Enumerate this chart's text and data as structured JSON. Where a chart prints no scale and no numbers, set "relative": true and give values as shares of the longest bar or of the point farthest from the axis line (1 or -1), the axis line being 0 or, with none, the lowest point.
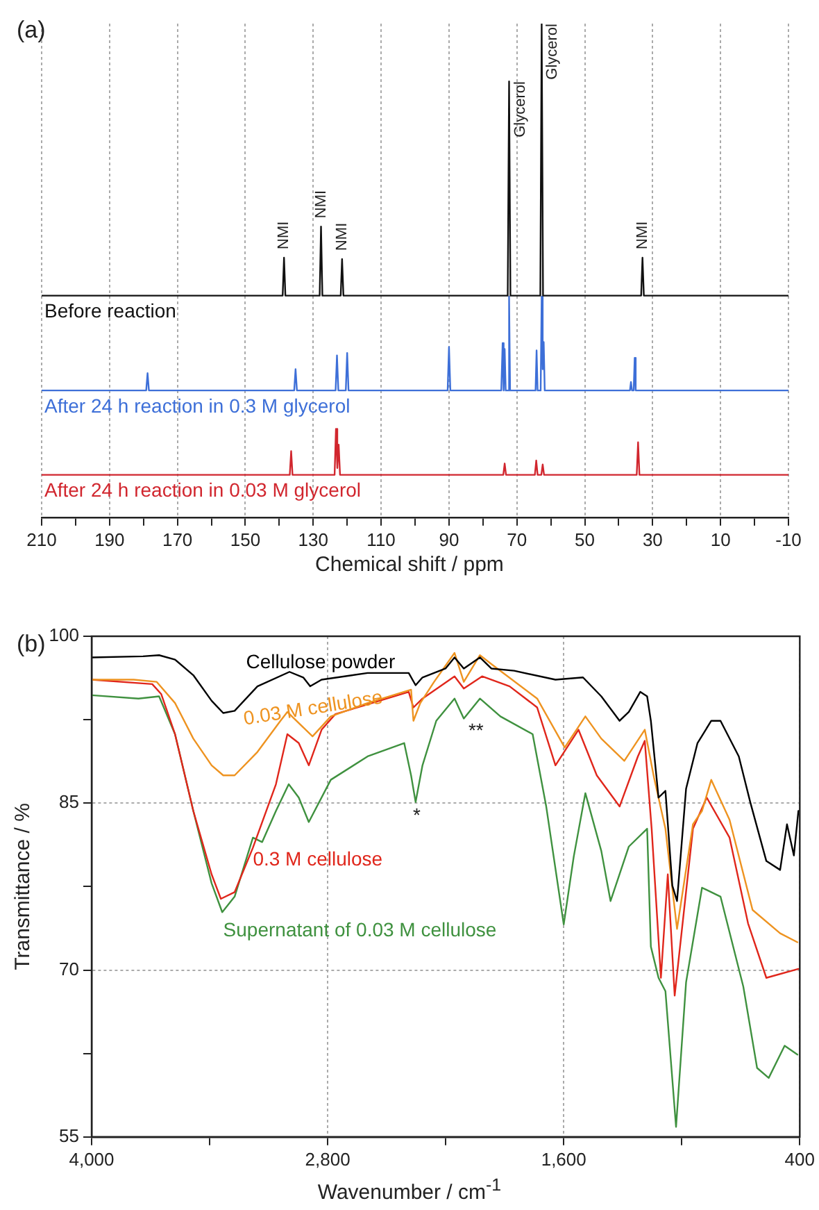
{
  "chart_data": [
    {
      "type": "line",
      "title": "(a)",
      "xlabel": "Chemical shift / ppm",
      "relative": true,
      "tick_labels": "x",
      "grid": "x",
      "marker": "none",
      "xlim": [
        210,
        -10
      ],
      "xticks": [
        210,
        {
          "value": 200,
          "label": null
        },
        190,
        {
          "value": 180,
          "label": null
        },
        170,
        {
          "value": 160,
          "label": null
        },
        150,
        {
          "value": 140,
          "label": null
        },
        130,
        {
          "value": 120,
          "label": null
        },
        110,
        {
          "value": 100,
          "label": null
        },
        90,
        {
          "value": 80,
          "label": null
        },
        70,
        {
          "value": 60,
          "label": null
        },
        50,
        {
          "value": 40,
          "label": null
        },
        30,
        {
          "value": 20,
          "label": null
        },
        10,
        {
          "value": 0,
          "label": null
        },
        -10
      ],
      "series": [
        {
          "name": "Before reaction",
          "color": "#111111",
          "x": [
            210,
            139.0,
            138.6,
            138.2,
            128.1,
            127.7,
            127.3,
            121.9,
            121.5,
            121.1,
            72.7,
            72.3,
            71.9,
            63.1,
            62.7,
            62.3,
            33.4,
            33.0,
            32.6,
            -10
          ],
          "values": [
            0.449,
            0.449,
            0.526,
            0.449,
            0.449,
            0.589,
            0.449,
            0.449,
            0.523,
            0.449,
            0.449,
            0.883,
            0.449,
            0.449,
            1,
            0.449,
            0.449,
            0.526,
            0.449,
            0.449
          ]
        },
        {
          "name": "After 24 h reaction in 0.3 M glycerol",
          "color": "#3d6fd8",
          "x": [
            210,
            179.2,
            178.8,
            178.4,
            135.6,
            135.2,
            134.8,
            123.4,
            123.0,
            122.6,
            120.4,
            120.0,
            119.6,
            90.4,
            90.0,
            89.6,
            74.6,
            74.2,
            73.9,
            73.6,
            73.3,
            72.6,
            72.3,
            72.0,
            64.5,
            64.2,
            63.9,
            63.0,
            62.7,
            62.4,
            62.1,
            61.8,
            36.7,
            36.4,
            36.1,
            35.6,
            35.3,
            35.0,
            -10
          ],
          "values": [
            0.257,
            0.257,
            0.292,
            0.257,
            0.257,
            0.3,
            0.257,
            0.257,
            0.328,
            0.257,
            0.257,
            0.333,
            0.257,
            0.257,
            0.345,
            0.257,
            0.257,
            0.353,
            0.257,
            0.341,
            0.257,
            0.257,
            0.447,
            0.257,
            0.257,
            0.338,
            0.257,
            0.257,
            0.447,
            0.3,
            0.355,
            0.257,
            0.257,
            0.274,
            0.257,
            0.257,
            0.323,
            0.257,
            0.257
          ]
        },
        {
          "name": "After 24 h reaction in 0.03 M glycerol",
          "color": "#d1262e",
          "x": [
            210,
            136.9,
            136.5,
            136.1,
            123.7,
            123.3,
            122.9,
            122.5,
            122.1,
            74.0,
            73.6,
            73.2,
            64.7,
            64.3,
            63.9,
            62.8,
            62.4,
            62.0,
            34.7,
            34.3,
            33.9,
            -10
          ],
          "values": [
            0.086,
            0.086,
            0.134,
            0.086,
            0.086,
            0.179,
            0.1,
            0.147,
            0.086,
            0.086,
            0.109,
            0.086,
            0.086,
            0.115,
            0.086,
            0.086,
            0.107,
            0.086,
            0.086,
            0.152,
            0.086,
            0.086
          ]
        }
      ],
      "annotations": [
        {
          "text": "NMI",
          "x": 138.6,
          "y": 0.526
        },
        {
          "text": "NMI",
          "x": 127.7,
          "y": 0.589
        },
        {
          "text": "NMI",
          "x": 121.5,
          "y": 0.523
        },
        {
          "text": "Glycerol",
          "x": 72.3,
          "y": 0.883
        },
        {
          "text": "Glycerol",
          "x": 62.7,
          "y": 1
        },
        {
          "text": "NMI",
          "x": 33.0,
          "y": 0.526
        }
      ]
    },
    {
      "type": "line",
      "title": "(b)",
      "xlabel": "Wavenumber / cm$^{-1}$",
      "ylabel": "Transmittance / %",
      "grid": true,
      "marker": "none",
      "xlim": [
        4000,
        400
      ],
      "xticks": [
        {
          "value": 4000,
          "label": "4,000"
        },
        {
          "value": 3400,
          "label": null
        },
        {
          "value": 2800,
          "label": "2,800"
        },
        {
          "value": 2200,
          "label": null
        },
        {
          "value": 1600,
          "label": "1,600"
        },
        {
          "value": 1000,
          "label": null
        },
        400
      ],
      "ylim": [
        55,
        100
      ],
      "yticks": [
        55,
        {
          "value": 62.5,
          "label": null
        },
        70,
        {
          "value": 77.5,
          "label": null
        },
        85,
        {
          "value": 92.5,
          "label": null
        },
        100
      ],
      "series": [
        {
          "name": "Cellulose powder",
          "color": "#000000",
          "x": [
            4000,
            3739,
            3657,
            3576,
            3483,
            3390,
            3331,
            3273,
            3157,
            2994,
            2924,
            2889,
            2831,
            2597,
            2388,
            2353,
            2318,
            2201,
            2155,
            2108,
            2026,
            1968,
            1852,
            1642,
            1502,
            1409,
            1316,
            1269,
            1211,
            1176,
            1157,
            1118,
            1083,
            1048,
            1024,
            978,
            920,
            850,
            803,
            710,
            652,
            570,
            500,
            465,
            430,
            407
          ],
          "values": [
            98.1,
            98.2,
            98.3,
            97.9,
            96.5,
            94.2,
            93.1,
            93.3,
            95.5,
            96.8,
            96.3,
            95.5,
            96.1,
            96.7,
            96.7,
            95.6,
            96.3,
            97.1,
            98.1,
            97.1,
            98.1,
            97.1,
            96.9,
            96.1,
            96.3,
            94.6,
            92.4,
            93.2,
            95.0,
            94.6,
            92.4,
            85.5,
            86.1,
            77.6,
            76.2,
            86.3,
            90.4,
            92.4,
            92.4,
            89.2,
            85.1,
            79.8,
            79.0,
            83.1,
            80.3,
            84.3
          ]
        },
        {
          "name": "0.03 M cellulose",
          "color": "#ee9320",
          "x": [
            4000,
            3786,
            3669,
            3576,
            3483,
            3390,
            3331,
            3273,
            3157,
            3040,
            3005,
            2970,
            2877,
            2784,
            2597,
            2376,
            2364,
            2329,
            2259,
            2155,
            2108,
            2026,
            1968,
            1735,
            1595,
            1490,
            1409,
            1292,
            1188,
            1141,
            1083,
            1024,
            943,
            897,
            850,
            757,
            640,
            500,
            412
          ],
          "values": [
            96.1,
            96.1,
            95.9,
            94.0,
            90.8,
            88.4,
            87.5,
            87.5,
            89.6,
            92.4,
            93.2,
            92.6,
            91.0,
            92.8,
            94.0,
            95.2,
            92.4,
            94.0,
            95.9,
            98.5,
            95.9,
            98.3,
            97.5,
            94.4,
            90.0,
            92.8,
            90.8,
            88.8,
            91.6,
            87.3,
            82.7,
            73.7,
            83.1,
            84.3,
            87.1,
            83.5,
            75.4,
            73.3,
            72.5
          ]
        },
        {
          "name": "0.3 M cellulose",
          "color": "#e0261b",
          "x": [
            4000,
            3692,
            3646,
            3576,
            3483,
            3390,
            3343,
            3273,
            3180,
            3063,
            3005,
            2947,
            2896,
            2831,
            2761,
            2388,
            2364,
            2318,
            2155,
            2108,
            2015,
            1875,
            1735,
            1642,
            1525,
            1432,
            1316,
            1223,
            1188,
            1153,
            1106,
            1071,
            1036,
            943,
            873,
            757,
            663,
            570,
            407
          ],
          "values": [
            96.1,
            95.7,
            94.8,
            91.2,
            84.3,
            78.6,
            76.4,
            77.0,
            81.0,
            86.7,
            91.2,
            90.4,
            88.4,
            91.6,
            93.0,
            95.0,
            93.6,
            94.4,
            96.4,
            95.3,
            96.4,
            95.5,
            93.6,
            88.4,
            91.6,
            87.5,
            84.7,
            89.2,
            90.6,
            82.7,
            69.3,
            78.6,
            67.7,
            82.7,
            85.5,
            81.9,
            74.2,
            69.3,
            70.1
          ]
        },
        {
          "name": "Supernatant of 0.03 M cellulose",
          "color": "#3f913f",
          "x": [
            4000,
            3762,
            3657,
            3576,
            3483,
            3390,
            3336,
            3273,
            3180,
            3133,
            3063,
            2998,
            2947,
            2896,
            2784,
            2597,
            2411,
            2376,
            2353,
            2318,
            2248,
            2155,
            2108,
            2026,
            1922,
            1758,
            1689,
            1600,
            1549,
            1490,
            1409,
            1362,
            1269,
            1176,
            1157,
            1118,
            1083,
            1029,
            978,
            897,
            803,
            687,
            617,
            558,
            477,
            412
          ],
          "values": [
            94.7,
            94.4,
            94.6,
            91.2,
            84.3,
            77.8,
            75.2,
            76.6,
            81.9,
            81.5,
            84.3,
            86.7,
            85.5,
            83.3,
            87.1,
            89.2,
            90.4,
            87.5,
            85.1,
            88.4,
            92.4,
            94.4,
            92.6,
            94.4,
            92.8,
            91.2,
            84.7,
            74.1,
            80.2,
            85.9,
            80.7,
            76.2,
            81.1,
            82.7,
            72.1,
            69.3,
            68.1,
            55.9,
            68.9,
            77.4,
            76.6,
            68.5,
            61.2,
            60.3,
            63.2,
            62.4
          ]
        }
      ],
      "annotations": [
        "*",
        "**"
      ]
    }
  ]
}
